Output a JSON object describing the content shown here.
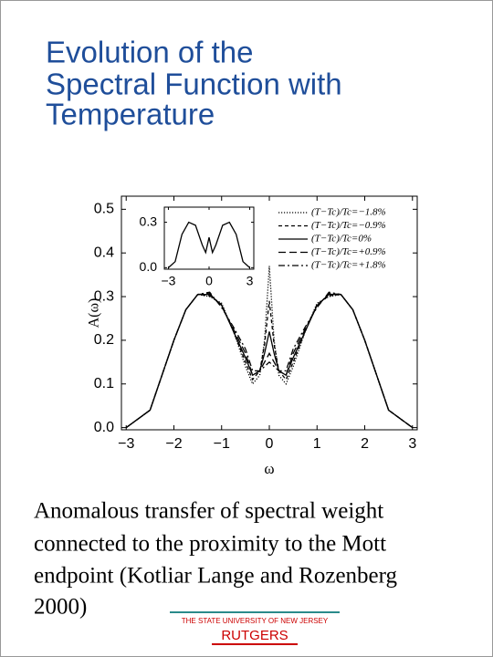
{
  "title": [
    "Evolution of the",
    "Spectral Function with",
    "Temperature"
  ],
  "chart_data": [
    {
      "type": "line",
      "xlabel": "ω",
      "ylabel": "A(ω)",
      "xlim": [
        -3.1,
        3.1
      ],
      "ylim": [
        -0.005,
        0.53
      ],
      "xticks": [
        {
          "value": -3,
          "label": "−3"
        },
        {
          "value": -2,
          "label": "−2"
        },
        {
          "value": -1,
          "label": "−1"
        },
        0,
        1,
        2,
        3
      ],
      "yticks": [
        {
          "value": 0,
          "label": "0.0"
        },
        0.1,
        0.2,
        0.3,
        0.4,
        0.5
      ],
      "x": [
        -3,
        -2.5,
        -2,
        -1.75,
        -1.5,
        -1.25,
        -1,
        -0.75,
        -0.5,
        -0.35,
        -0.2,
        -0.1,
        0,
        0.1,
        0.2,
        0.35,
        0.5,
        0.75,
        1,
        1.25,
        1.5,
        1.75,
        2,
        2.5,
        3
      ],
      "series": [
        {
          "name": "(T−Tc)/Tc=−1.8%",
          "color": "#000000",
          "style": "dotted",
          "values": [
            0,
            0.04,
            0.2,
            0.27,
            0.305,
            0.3,
            0.285,
            0.22,
            0.14,
            0.1,
            0.12,
            0.2,
            0.37,
            0.2,
            0.12,
            0.1,
            0.14,
            0.22,
            0.285,
            0.3,
            0.305,
            0.27,
            0.2,
            0.04,
            0
          ]
        },
        {
          "name": "(T−Tc)/Tc=−0.9%",
          "color": "#000000",
          "style": "dashed",
          "values": [
            0,
            0.04,
            0.2,
            0.27,
            0.305,
            0.302,
            0.282,
            0.22,
            0.15,
            0.11,
            0.13,
            0.19,
            0.29,
            0.19,
            0.13,
            0.11,
            0.15,
            0.22,
            0.282,
            0.302,
            0.305,
            0.27,
            0.2,
            0.04,
            0
          ]
        },
        {
          "name": "(T−Tc)/Tc=0%",
          "color": "#000000",
          "style": "solid",
          "values": [
            0,
            0.04,
            0.2,
            0.27,
            0.305,
            0.305,
            0.28,
            0.22,
            0.16,
            0.12,
            0.13,
            0.17,
            0.22,
            0.17,
            0.13,
            0.12,
            0.16,
            0.22,
            0.28,
            0.305,
            0.305,
            0.27,
            0.2,
            0.04,
            0
          ]
        },
        {
          "name": "(T−Tc)/Tc=+0.9%",
          "color": "#000000",
          "style": "longdash",
          "values": [
            0,
            0.04,
            0.2,
            0.27,
            0.305,
            0.307,
            0.278,
            0.225,
            0.17,
            0.12,
            0.13,
            0.15,
            0.17,
            0.15,
            0.13,
            0.12,
            0.17,
            0.225,
            0.278,
            0.307,
            0.305,
            0.27,
            0.2,
            0.04,
            0
          ]
        },
        {
          "name": "(T−Tc)/Tc=+1.8%",
          "color": "#000000",
          "style": "dashdot",
          "values": [
            0,
            0.04,
            0.2,
            0.27,
            0.305,
            0.31,
            0.275,
            0.23,
            0.18,
            0.13,
            0.13,
            0.14,
            0.15,
            0.14,
            0.13,
            0.13,
            0.18,
            0.23,
            0.275,
            0.31,
            0.305,
            0.27,
            0.2,
            0.04,
            0
          ]
        }
      ]
    },
    {
      "type": "line",
      "xlim": [
        -3.3,
        3.3
      ],
      "ylim": [
        -0.01,
        0.4
      ],
      "xticks": [
        {
          "value": -3,
          "label": "−3"
        },
        0,
        3
      ],
      "yticks": [
        {
          "value": 0,
          "label": "0.0"
        },
        0.3
      ],
      "x": [
        -3,
        -2.5,
        -2,
        -1.5,
        -1,
        -0.5,
        -0.25,
        0,
        0.25,
        0.5,
        1,
        1.5,
        2,
        2.5,
        3
      ],
      "series": [
        {
          "color": "#000000",
          "style": "solid",
          "values": [
            0,
            0.04,
            0.22,
            0.3,
            0.28,
            0.15,
            0.1,
            0.2,
            0.1,
            0.15,
            0.28,
            0.3,
            0.22,
            0.04,
            0
          ]
        }
      ]
    }
  ],
  "caption": [
    "Anomalous transfer of spectral weight",
    "connected to the proximity to the Mott",
    "endpoint (Kotliar Lange and Rozenberg",
    "2000)"
  ],
  "footer": {
    "university": "THE STATE UNIVERSITY OF NEW JERSEY",
    "name": "RUTGERS"
  }
}
